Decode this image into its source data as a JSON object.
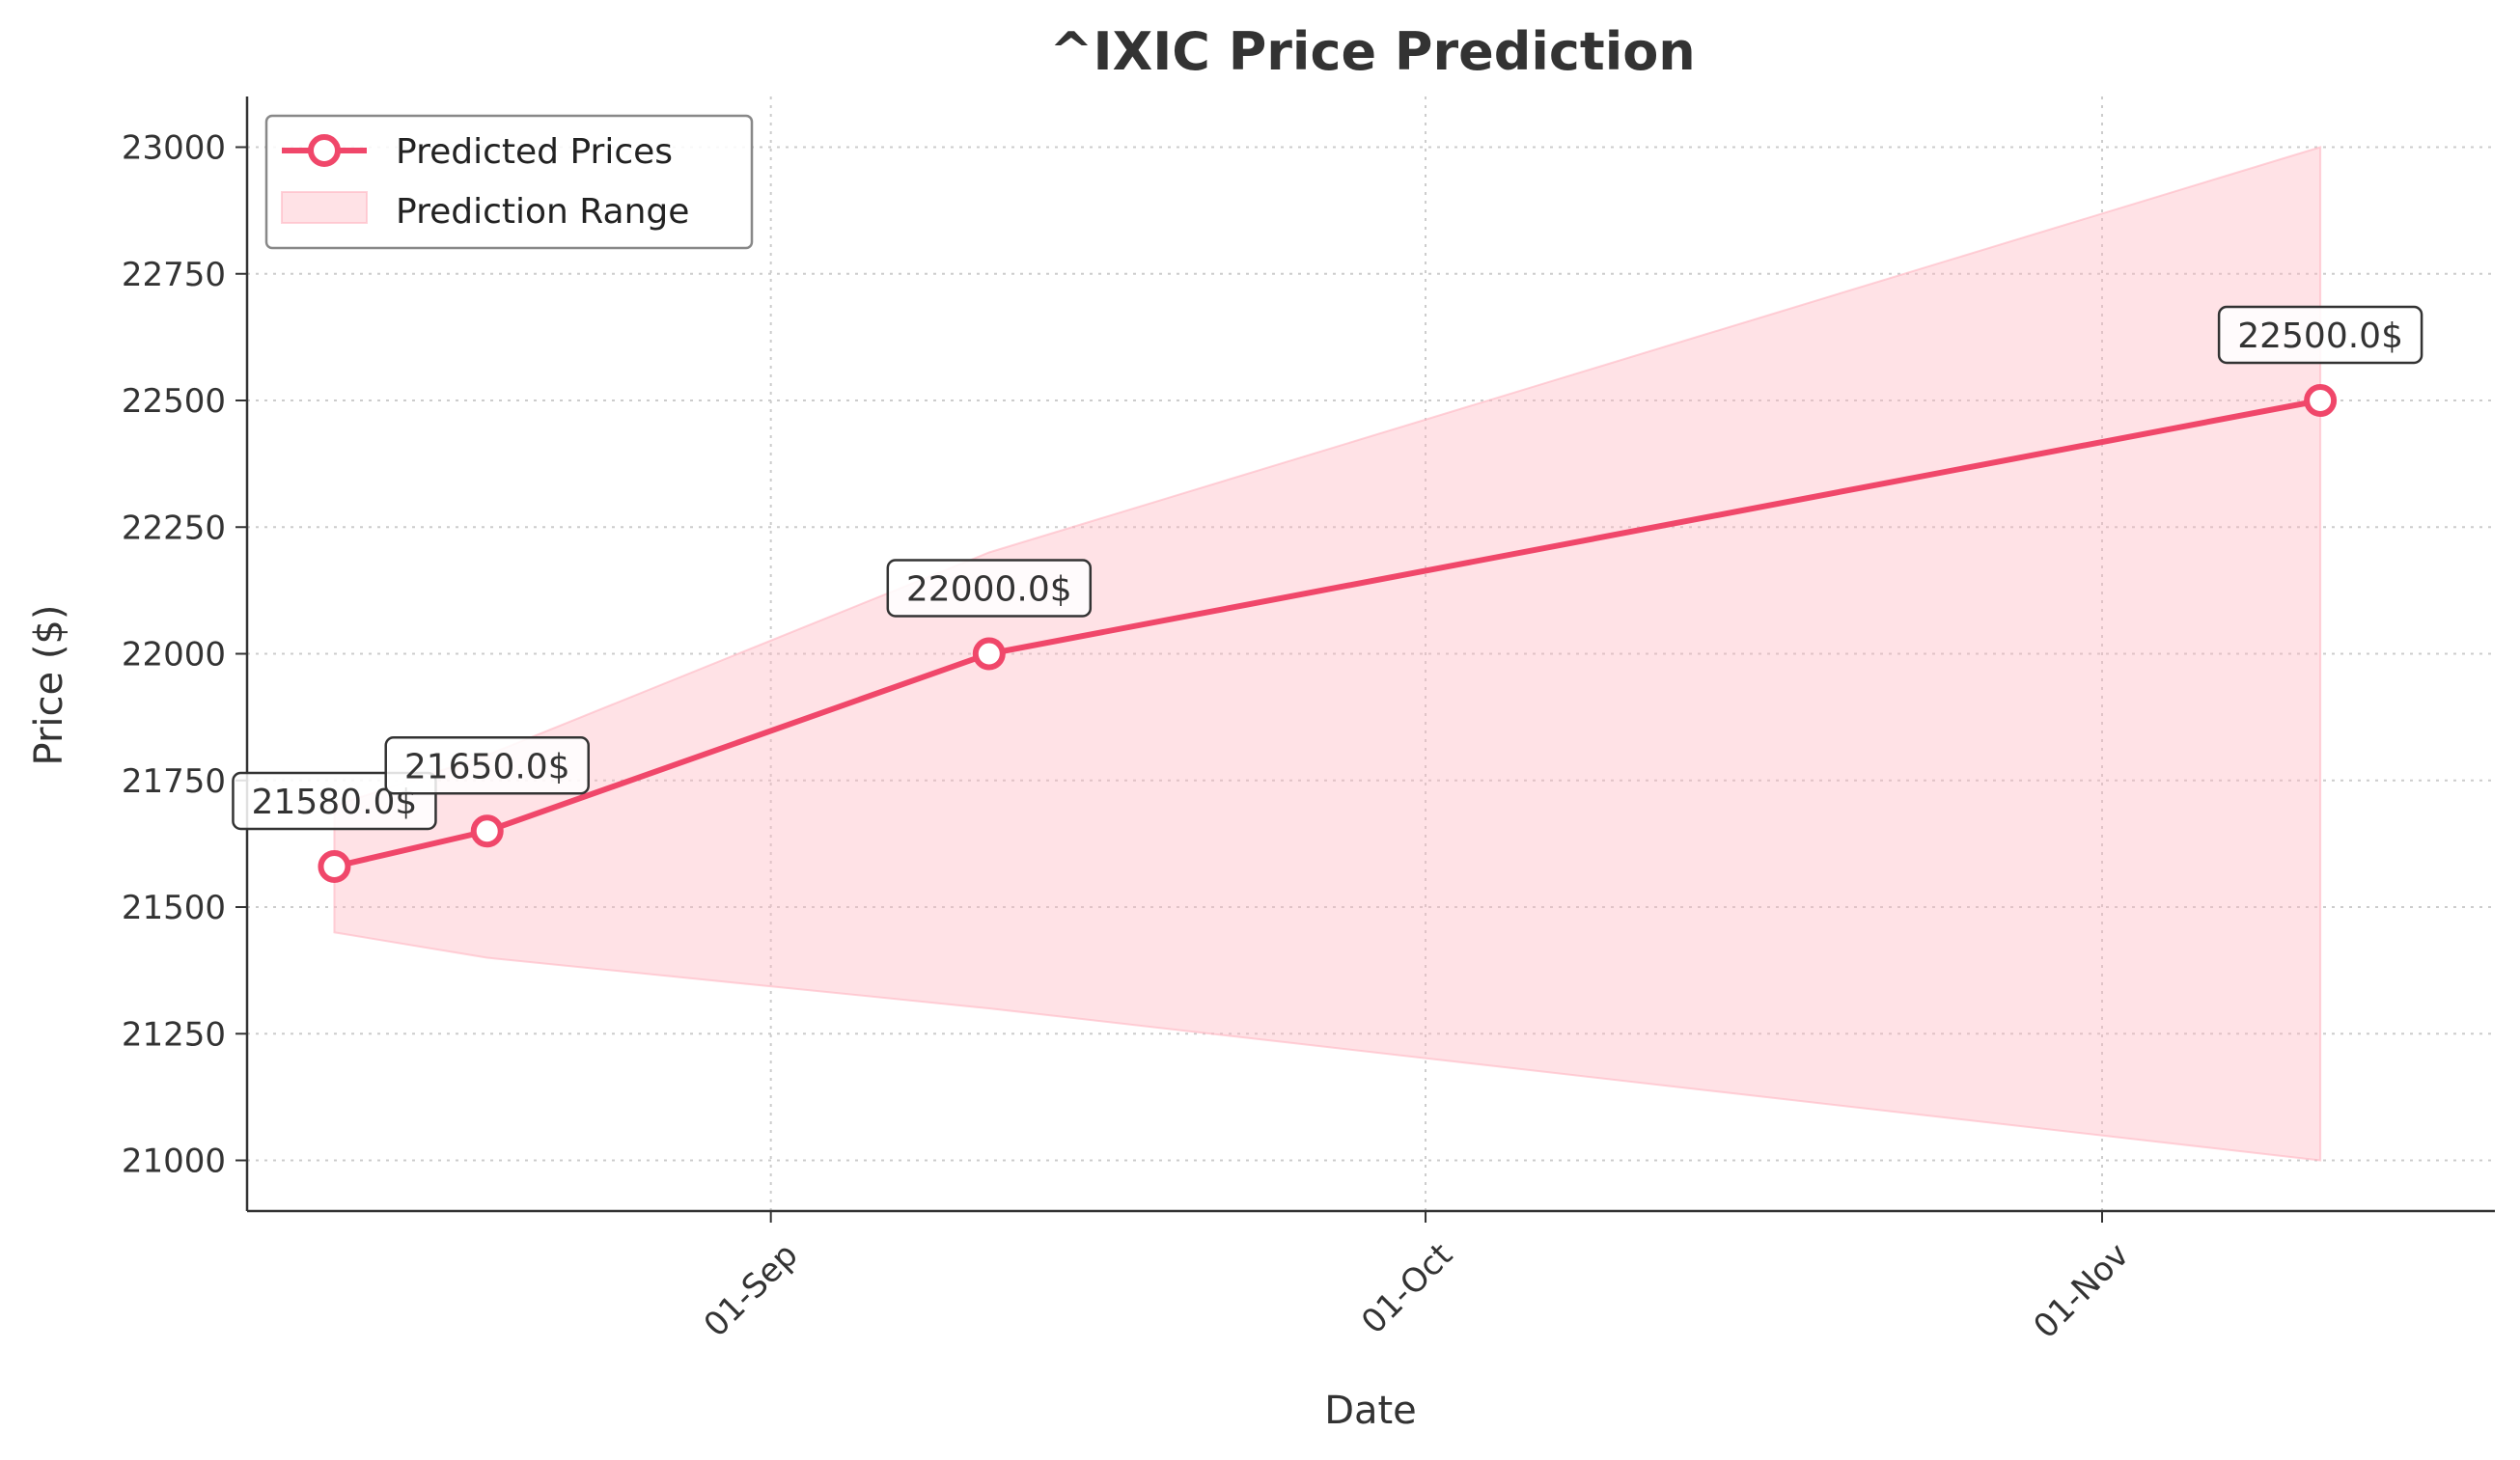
{
  "chart_data": {
    "type": "line",
    "title": "^IXIC Price Prediction",
    "xlabel": "Date",
    "ylabel": "Price ($)",
    "x_ticks": [
      {
        "date": "2025-09-01",
        "label": "01-Sep"
      },
      {
        "date": "2025-10-01",
        "label": "01-Oct"
      },
      {
        "date": "2025-11-01",
        "label": "01-Nov"
      }
    ],
    "y_ticks": [
      21000,
      21250,
      21500,
      21750,
      22000,
      22250,
      22500,
      22750,
      23000
    ],
    "xlim": [
      "2025-08-08",
      "2025-11-19"
    ],
    "ylim": [
      20900,
      23100
    ],
    "grid": true,
    "legend_position": "top-left",
    "series": [
      {
        "name": "Predicted Prices",
        "color": "#f0476a",
        "points": [
          {
            "date": "2025-08-12",
            "value": 21580.0,
            "label": "21580.0$"
          },
          {
            "date": "2025-08-19",
            "value": 21650.0,
            "label": "21650.0$"
          },
          {
            "date": "2025-09-11",
            "value": 22000.0,
            "label": "22000.0$"
          },
          {
            "date": "2025-11-11",
            "value": 22500.0,
            "label": "22500.0$"
          }
        ]
      }
    ],
    "range": {
      "name": "Prediction Range",
      "color": "#ffb6c1",
      "points": [
        {
          "date": "2025-08-12",
          "low": 21450,
          "high": 21700
        },
        {
          "date": "2025-08-19",
          "low": 21400,
          "high": 21800
        },
        {
          "date": "2025-09-11",
          "low": 21300,
          "high": 22200
        },
        {
          "date": "2025-11-11",
          "low": 21000,
          "high": 23000
        }
      ]
    }
  }
}
